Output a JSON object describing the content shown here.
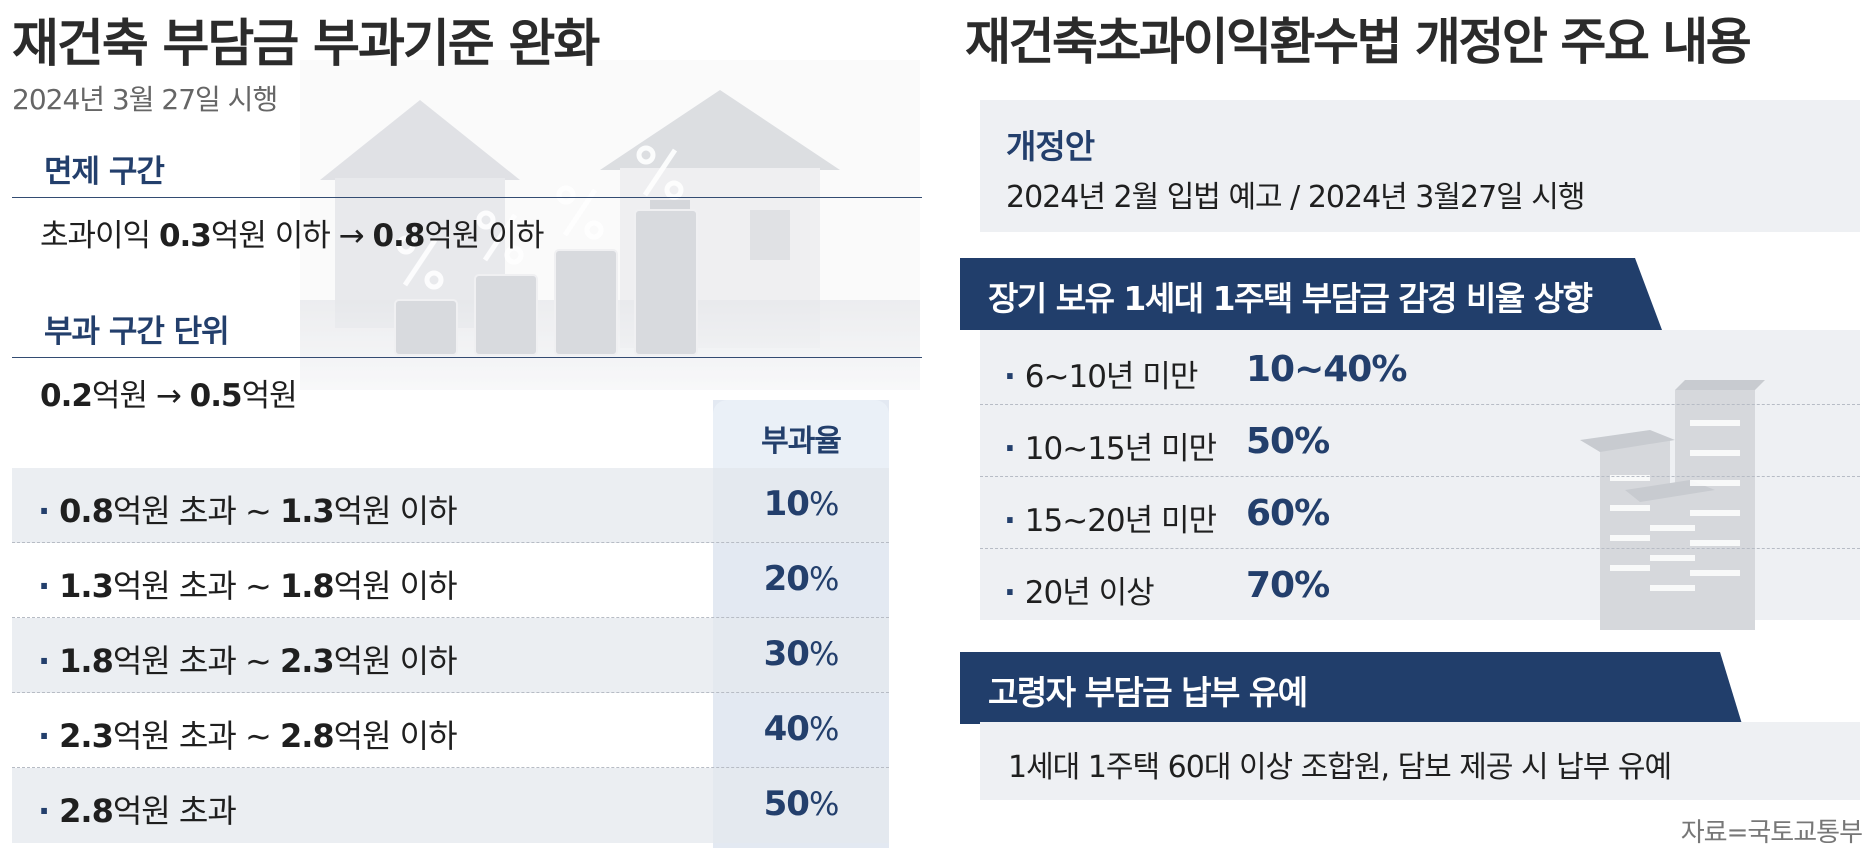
{
  "left": {
    "title": "재건축 부담금 부과기준 완화",
    "date": "2024년 3월 27일 시행",
    "exemption": {
      "heading": "면제 구간",
      "prefix": "초과이익 ",
      "from_value": "0.3",
      "from_unit": "억원 이하 → ",
      "to_value": "0.8",
      "to_unit": "억원 이하"
    },
    "unit_section": {
      "heading": "부과 구간 단위",
      "from_value": "0.2",
      "from_unit": "억원 → ",
      "to_value": "0.5",
      "to_unit": "억원"
    },
    "rate_table": {
      "header": "부과율",
      "rows": [
        {
          "from": "0.8",
          "mid": "억원 초과 ~ ",
          "to": "1.3",
          "end": "억원 이하",
          "rate": "10",
          "pct": "%"
        },
        {
          "from": "1.3",
          "mid": "억원 초과 ~ ",
          "to": "1.8",
          "end": "억원 이하",
          "rate": "20",
          "pct": "%"
        },
        {
          "from": "1.8",
          "mid": "억원 초과 ~ ",
          "to": "2.3",
          "end": "억원 이하",
          "rate": "30",
          "pct": "%"
        },
        {
          "from": "2.3",
          "mid": "억원 초과 ~ ",
          "to": "2.8",
          "end": "억원 이하",
          "rate": "40",
          "pct": "%"
        },
        {
          "from": "2.8",
          "mid": "억원 초과",
          "to": "",
          "end": "",
          "rate": "50",
          "pct": "%"
        }
      ]
    }
  },
  "right": {
    "title": "재건축초과이익환수법 개정안 주요 내용",
    "amendment": {
      "label": "개정안",
      "text": "2024년 2월 입법 예고  /  2024년 3월27일 시행"
    },
    "long_term": {
      "banner": "장기 보유 1세대 1주택 부담금 감경 비율 상향",
      "rows": [
        {
          "period": "6~10년 미만",
          "value": "10~40%"
        },
        {
          "period": "10~15년 미만",
          "value": "50%"
        },
        {
          "period": "15~20년 미만",
          "value": "60%"
        },
        {
          "period": "20년 이상",
          "value": "70%"
        }
      ]
    },
    "elderly": {
      "banner": "고령자 부담금 납부 유예",
      "text": "1세대 1주택 60대 이상 조합원, 담보 제공 시 납부 유예"
    }
  },
  "source": "자료=국토교통부",
  "colors": {
    "navy": "#233f6c",
    "banner": "#213e6b",
    "box_grey": "#eef0f3",
    "rate_col": "#e3e9f2"
  }
}
